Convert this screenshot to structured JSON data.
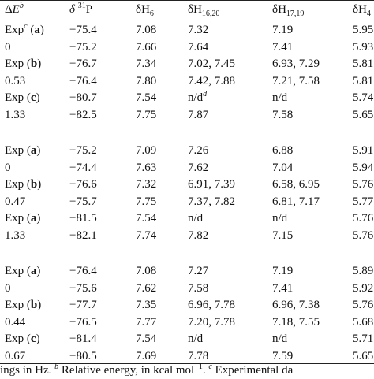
{
  "table": {
    "header": [
      [
        {
          "t": "Δ"
        },
        {
          "t": "E",
          "s": "i"
        },
        {
          "t": "b",
          "s": "supi"
        }
      ],
      [
        {
          "t": "δ",
          "s": "i"
        },
        {
          "t": " "
        },
        {
          "t": "31",
          "s": "sup"
        },
        {
          "t": "P"
        }
      ],
      [
        {
          "t": "δH"
        },
        {
          "t": "6",
          "s": "sub"
        }
      ],
      [
        {
          "t": "δH"
        },
        {
          "t": "16,20",
          "s": "sub"
        }
      ],
      [
        {
          "t": "δH"
        },
        {
          "t": "17,19",
          "s": "sub"
        }
      ],
      [
        {
          "t": "δH"
        },
        {
          "t": "4",
          "s": "sub"
        }
      ]
    ],
    "groups": [
      [
        [
          [
            {
              "t": "Exp"
            },
            {
              "t": "c",
              "s": "supi"
            },
            {
              "t": " ("
            },
            {
              "t": "a",
              "s": "b"
            },
            {
              "t": ")"
            }
          ],
          "−75.4",
          "7.08",
          "7.32",
          "7.19",
          "5.95"
        ],
        [
          "0",
          "−75.2",
          "7.66",
          "7.64",
          "7.41",
          "5.93"
        ],
        [
          [
            {
              "t": "Exp ("
            },
            {
              "t": "b",
              "s": "b"
            },
            {
              "t": ")"
            }
          ],
          "−76.7",
          "7.34",
          "7.02, 7.45",
          "6.93, 7.29",
          "5.81"
        ],
        [
          "0.53",
          "−76.4",
          "7.80",
          "7.42, 7.88",
          "7.21, 7.58",
          "5.81"
        ],
        [
          [
            {
              "t": "Exp ("
            },
            {
              "t": "c",
              "s": "b"
            },
            {
              "t": ")"
            }
          ],
          "−80.7",
          "7.54",
          [
            {
              "t": "n/d"
            },
            {
              "t": "d",
              "s": "supi"
            }
          ],
          "n/d",
          "5.74"
        ],
        [
          "1.33",
          "−82.5",
          "7.75",
          "7.87",
          "7.58",
          "5.65"
        ]
      ],
      [
        [
          [
            {
              "t": "Exp ("
            },
            {
              "t": "a",
              "s": "b"
            },
            {
              "t": ")"
            }
          ],
          "−75.2",
          "7.09",
          "7.26",
          "6.88",
          "5.91"
        ],
        [
          "0",
          "−74.4",
          "7.63",
          "7.62",
          "7.04",
          "5.94"
        ],
        [
          [
            {
              "t": "Exp ("
            },
            {
              "t": "b",
              "s": "b"
            },
            {
              "t": ")"
            }
          ],
          "−76.6",
          "7.32",
          "6.91, 7.39",
          "6.58, 6.95",
          "5.76"
        ],
        [
          "0.47",
          "−75.7",
          "7.75",
          "7.37, 7.82",
          "6.81, 7.17",
          "5.77"
        ],
        [
          [
            {
              "t": "Exp ("
            },
            {
              "t": "a",
              "s": "b"
            },
            {
              "t": ")"
            }
          ],
          "−81.5",
          "7.54",
          "n/d",
          "n/d",
          "5.76"
        ],
        [
          "1.33",
          "−82.1",
          "7.74",
          "7.82",
          "7.15",
          "5.76"
        ]
      ],
      [
        [
          [
            {
              "t": "Exp ("
            },
            {
              "t": "a",
              "s": "b"
            },
            {
              "t": ")"
            }
          ],
          "−76.4",
          "7.08",
          "7.27",
          "7.19",
          "5.89"
        ],
        [
          "0",
          "−75.6",
          "7.62",
          "7.58",
          "7.41",
          "5.92"
        ],
        [
          [
            {
              "t": "Exp ("
            },
            {
              "t": "b",
              "s": "b"
            },
            {
              "t": ")"
            }
          ],
          "−77.7",
          "7.35",
          "6.96, 7.78",
          "6.96, 7.38",
          "5.76"
        ],
        [
          "0.44",
          "−76.5",
          "7.77",
          "7.20, 7.78",
          "7.18, 7.55",
          "5.68"
        ],
        [
          [
            {
              "t": "Exp ("
            },
            {
              "t": "c",
              "s": "b"
            },
            {
              "t": ")"
            }
          ],
          "−81.4",
          "7.54",
          "n/d",
          "n/d",
          "5.71"
        ],
        [
          "0.67",
          "−80.5",
          "7.69",
          "7.78",
          "7.59",
          "5.65"
        ]
      ]
    ],
    "footnote": [
      {
        "t": "ings in Hz. "
      },
      {
        "t": "b",
        "s": "supi"
      },
      {
        "t": " Relative energy, in kcal mol"
      },
      {
        "t": "−1",
        "s": "sup"
      },
      {
        "t": ". "
      },
      {
        "t": "c",
        "s": "supi"
      },
      {
        "t": " Experimental da"
      }
    ]
  }
}
